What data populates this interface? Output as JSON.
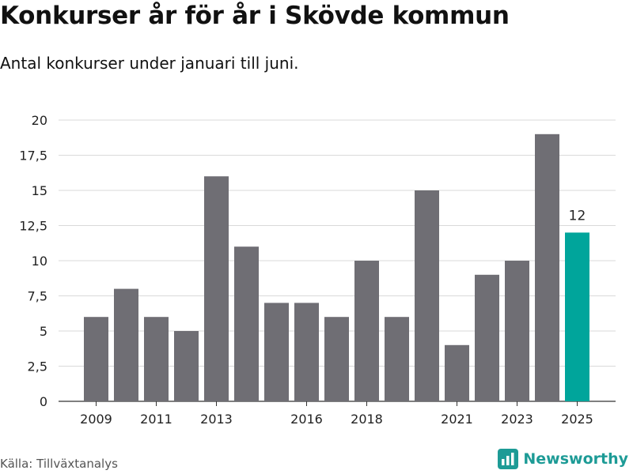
{
  "title": "Konkurser år för år i Skövde kommun",
  "subtitle": "Antal konkurser under januari till juni.",
  "source": "Källa: Tillväxtanalys",
  "brand": {
    "name": "Newsworthy",
    "logo_icon": "bar-chart-logo-icon"
  },
  "colors": {
    "bar": "#6f6e74",
    "highlight": "#00a59b",
    "grid": "#d9d9d9",
    "axis": "#333333"
  },
  "chart_data": {
    "type": "bar",
    "categories": [
      "2009",
      "2010",
      "2011",
      "2012",
      "2013",
      "2014",
      "2015",
      "2016",
      "2017",
      "2018",
      "2019",
      "2020",
      "2021",
      "2022",
      "2023",
      "2024",
      "2025"
    ],
    "values": [
      6,
      8,
      6,
      5,
      16,
      11,
      7,
      7,
      6,
      10,
      6,
      15,
      4,
      9,
      10,
      19,
      12
    ],
    "highlight": "2025",
    "highlight_label": "12",
    "x_tick_labels": [
      "2009",
      "2011",
      "2013",
      "2016",
      "2018",
      "2021",
      "2023",
      "2025"
    ],
    "y_ticks": [
      0,
      2.5,
      5,
      7.5,
      10,
      12.5,
      15,
      17.5,
      20
    ],
    "y_tick_labels": [
      "0",
      "2,5",
      "5",
      "7,5",
      "10",
      "12,5",
      "15",
      "17,5",
      "20"
    ],
    "ylim": [
      0,
      20
    ],
    "grid": true,
    "xlabel": "",
    "ylabel": ""
  }
}
